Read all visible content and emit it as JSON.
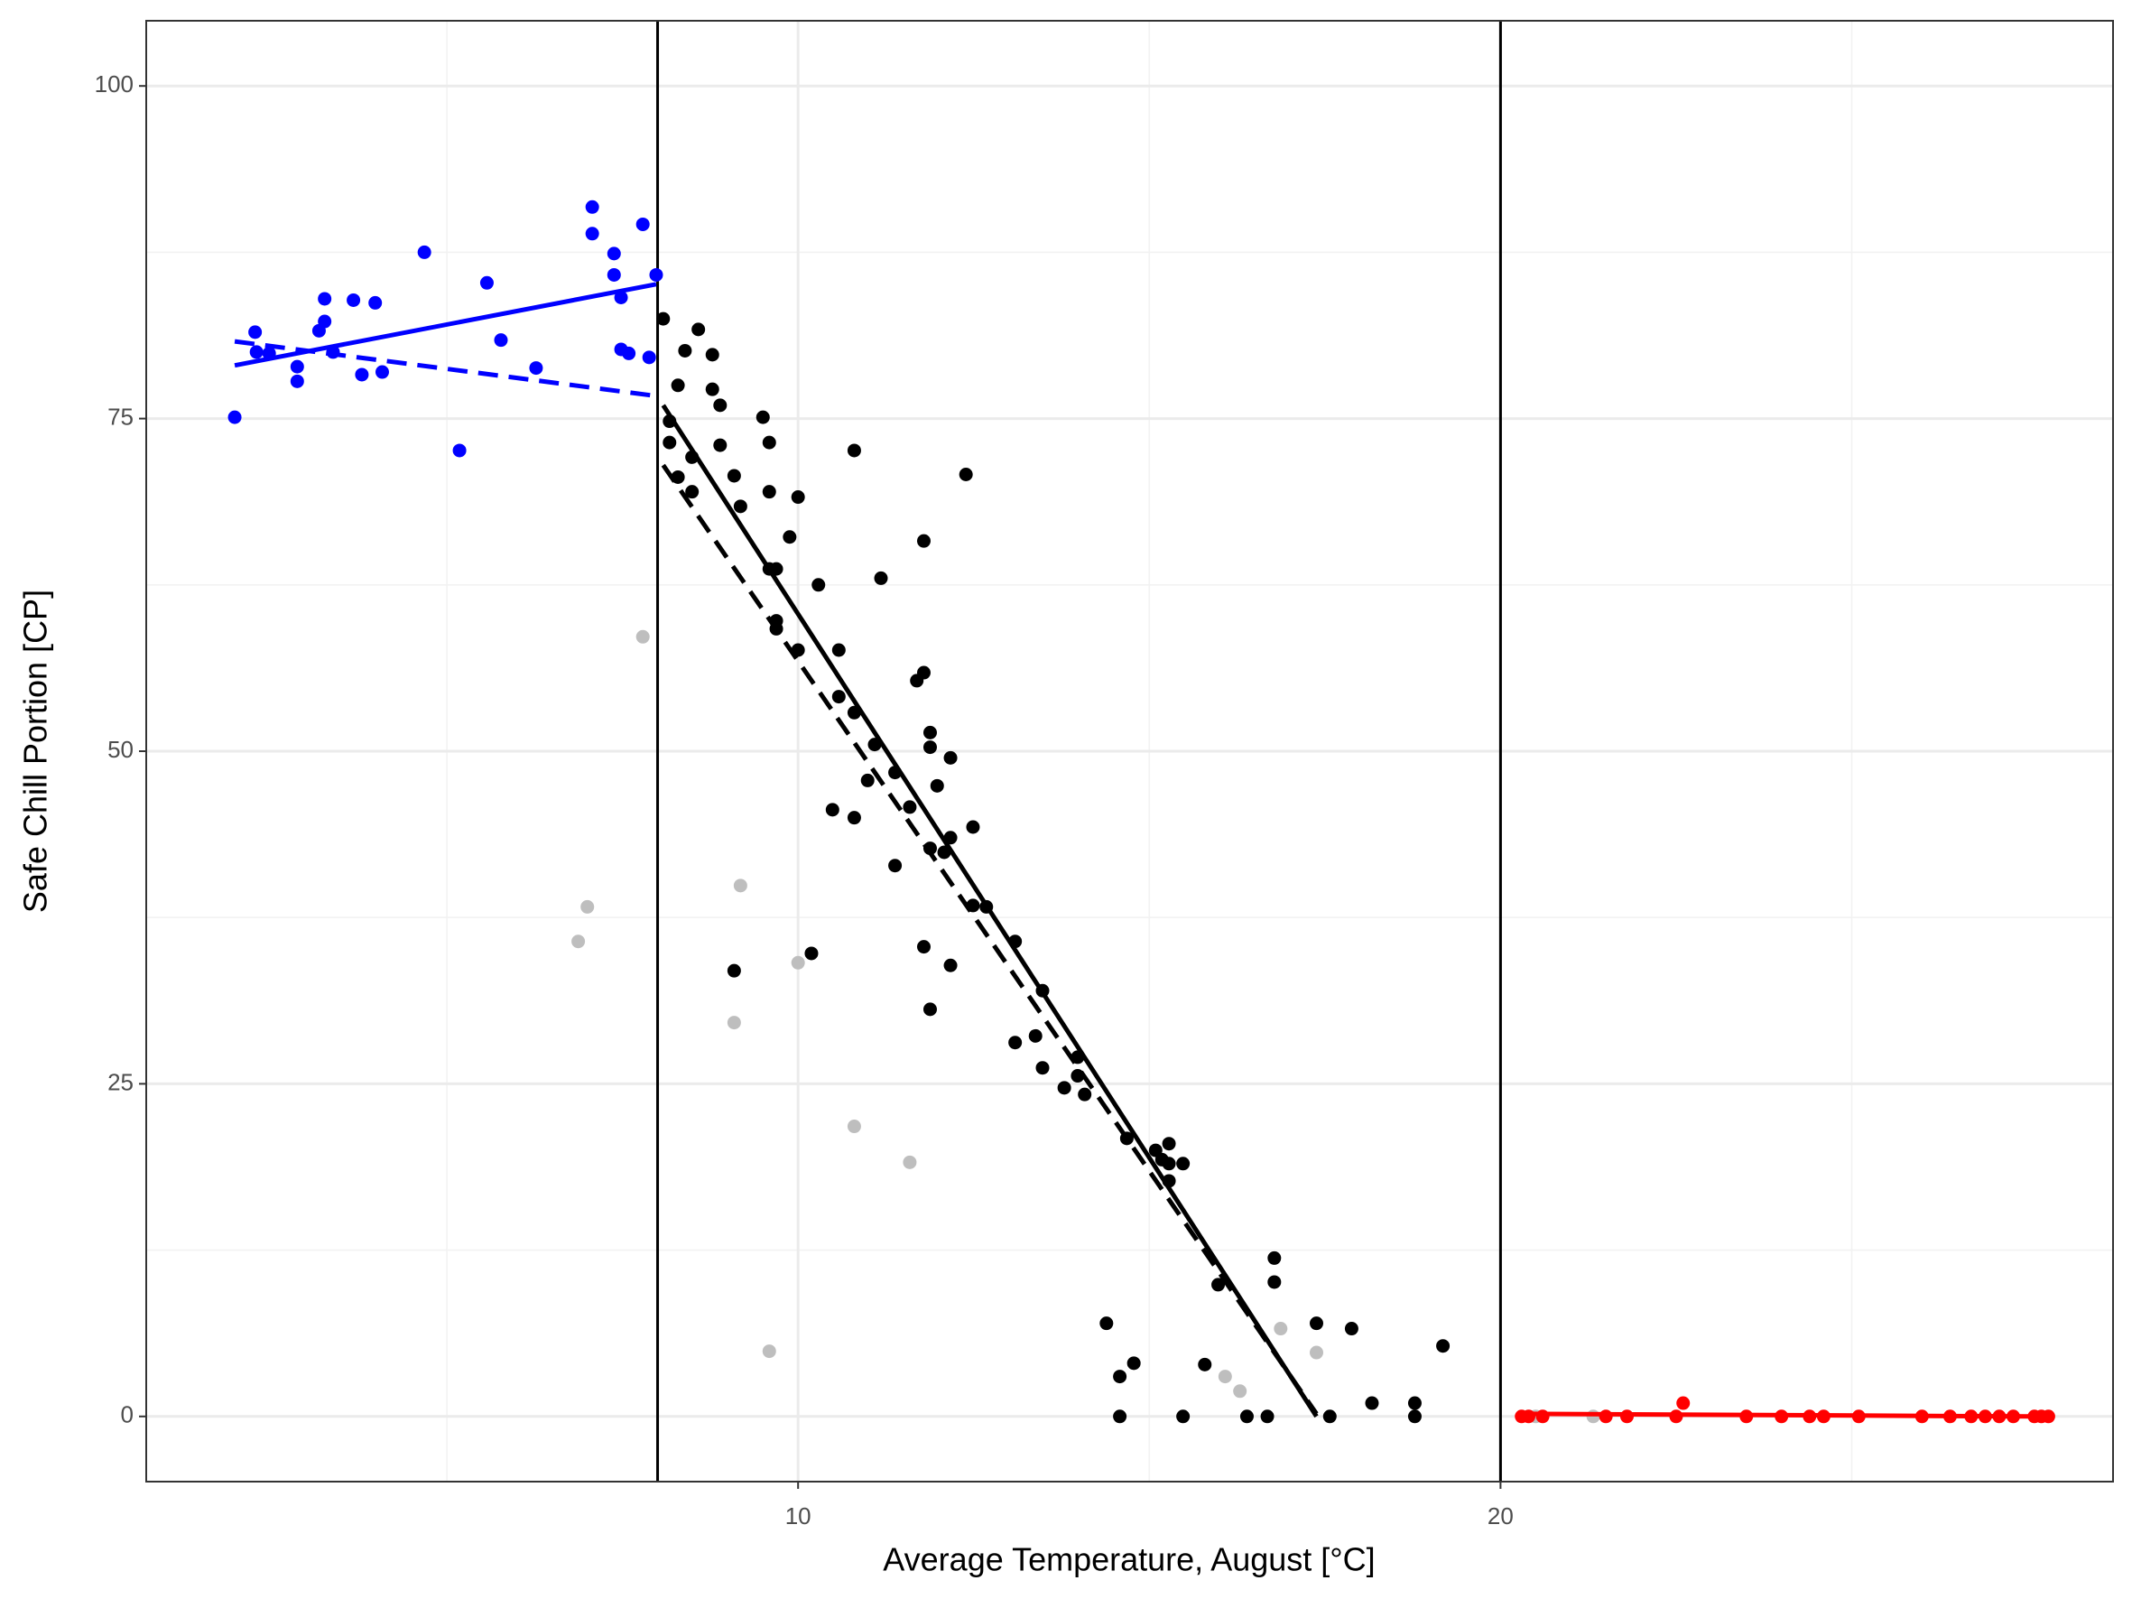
{
  "chart_data": {
    "type": "scatter",
    "x_label": "Average Temperature, August [°C]",
    "y_label": "Safe Chill Portion [CP]",
    "xlim": [
      0.72,
      28.72
    ],
    "ylim": [
      -4.9,
      104.9
    ],
    "xticks": [
      10,
      20
    ],
    "yticks": [
      0,
      25,
      50,
      75,
      100
    ],
    "x_minor_grid": [
      5,
      15,
      25
    ],
    "y_minor_grid": [
      12.5,
      37.5,
      62.5,
      87.5
    ],
    "grid": true,
    "vlines": [
      8,
      20
    ],
    "series": [
      {
        "color": "#0000ff",
        "x": [
          1.98,
          2.27,
          2.29,
          2.47,
          2.87,
          2.87,
          3.18,
          3.26,
          3.26,
          3.38,
          3.67,
          3.79,
          3.98,
          4.08,
          4.68,
          5.18,
          5.57,
          5.77,
          6.27,
          7.07,
          7.07,
          7.38,
          7.38,
          7.48,
          7.48,
          7.59,
          7.79,
          7.88,
          7.98
        ],
        "values": [
          75.1,
          81.5,
          80,
          79.9,
          78.9,
          77.8,
          81.6,
          82.3,
          84.0,
          80,
          83.9,
          78.3,
          83.7,
          78.5,
          87.5,
          72.6,
          85.2,
          80.9,
          78.8,
          90.9,
          88.9,
          87.4,
          85.8,
          84.1,
          80.2,
          79.9,
          89.6,
          79.6,
          85.8
        ]
      },
      {
        "color": "#bebebe",
        "x": [
          7.79,
          7.0,
          6.87,
          9.18,
          9.09,
          10.0,
          9.59,
          10.8,
          11.59,
          16.87,
          17.38,
          16.08,
          16.29,
          20.5,
          21.32
        ],
        "values": [
          58.6,
          38.3,
          35.7,
          39.9,
          29.6,
          34.1,
          4.9,
          21.8,
          19.1,
          6.6,
          4.8,
          3.0,
          1.9,
          0,
          0
        ]
      },
      {
        "color": "#000000",
        "x": [
          8.08,
          8.17,
          8.17,
          8.29,
          8.29,
          8.39,
          8.49,
          8.49,
          8.58,
          8.78,
          8.78,
          8.89,
          8.89,
          9.09,
          9.18,
          9.5,
          9.59,
          9.59,
          9.59,
          9.69,
          9.69,
          9.69,
          9.88,
          10.0,
          10.0,
          10.29,
          10.49,
          10.58,
          10.58,
          10.8,
          10.8,
          10.8,
          10.99,
          11.09,
          11.18,
          11.38,
          11.38,
          11.59,
          11.69,
          11.79,
          11.79,
          11.79,
          11.88,
          11.88,
          11.88,
          11.88,
          11.98,
          12.08,
          12.17,
          12.17,
          12.17,
          12.39,
          12.49,
          12.49,
          12.68,
          9.09,
          10.19,
          13.09,
          13.09,
          13.38,
          13.48,
          13.48,
          13.79,
          13.98,
          13.98,
          14.08,
          14.39,
          14.58,
          14.58,
          14.68,
          14.78,
          15.09,
          15.18,
          15.28,
          15.28,
          15.28,
          15.48,
          15.48,
          15.79,
          15.98,
          16.39,
          16.68,
          16.78,
          16.78,
          17.38,
          17.57,
          17.88,
          18.17,
          18.78,
          18.78,
          19.18
        ],
        "values": [
          82.5,
          74.8,
          73.2,
          70.6,
          77.5,
          80.1,
          72.1,
          69.5,
          81.7,
          79.8,
          77.2,
          76.0,
          73.0,
          70.7,
          68.4,
          75.1,
          73.2,
          69.5,
          63.7,
          63.7,
          59.8,
          59.2,
          66.1,
          69.1,
          57.6,
          62.5,
          45.6,
          57.6,
          54.1,
          72.6,
          52.9,
          45.0,
          47.8,
          50.5,
          63.0,
          48.4,
          41.4,
          45.8,
          55.3,
          55.9,
          65.8,
          35.3,
          51.4,
          50.3,
          42.7,
          30.6,
          47.4,
          42.4,
          43.5,
          49.5,
          33.9,
          70.8,
          44.3,
          38.4,
          38.3,
          33.5,
          34.8,
          35.7,
          28.1,
          28.6,
          32.0,
          26.2,
          24.7,
          27.0,
          25.6,
          24.2,
          7.0,
          3.0,
          0,
          20.9,
          4.0,
          20.0,
          19.3,
          20.5,
          19.0,
          17.7,
          19.0,
          0,
          3.9,
          9.9,
          0,
          0,
          11.9,
          10.1,
          7.0,
          0,
          6.6,
          1.0,
          1.0,
          0,
          5.3
        ]
      },
      {
        "color": "#ff0000",
        "x": [
          20.3,
          20.4,
          20.6,
          21.5,
          21.8,
          22.5,
          22.6,
          23.5,
          24.0,
          24.4,
          24.6,
          25.1,
          26.0,
          26.4,
          26.7,
          26.9,
          27.1,
          27.3,
          27.6,
          27.7,
          27.8
        ],
        "values": [
          0,
          0,
          0,
          0,
          0,
          0,
          1.0,
          0,
          0,
          0,
          0,
          0,
          0,
          0,
          0,
          0,
          0,
          0,
          0,
          0,
          0
        ]
      }
    ],
    "lines": [
      {
        "color": "#0000ff",
        "dashed": false,
        "x": [
          1.98,
          7.98
        ],
        "values": [
          79.0,
          85.1
        ]
      },
      {
        "color": "#0000ff",
        "dashed": true,
        "x": [
          1.98,
          7.98
        ],
        "values": [
          80.8,
          76.7
        ]
      },
      {
        "color": "#000000",
        "dashed": false,
        "x": [
          8.08,
          17.38
        ],
        "values": [
          76.0,
          0
        ]
      },
      {
        "color": "#000000",
        "dashed": true,
        "x": [
          8.08,
          17.38
        ],
        "values": [
          71.5,
          0.2
        ]
      },
      {
        "color": "#ff0000",
        "dashed": false,
        "x": [
          20.29,
          27.53
        ],
        "values": [
          0.2,
          0
        ]
      }
    ]
  }
}
